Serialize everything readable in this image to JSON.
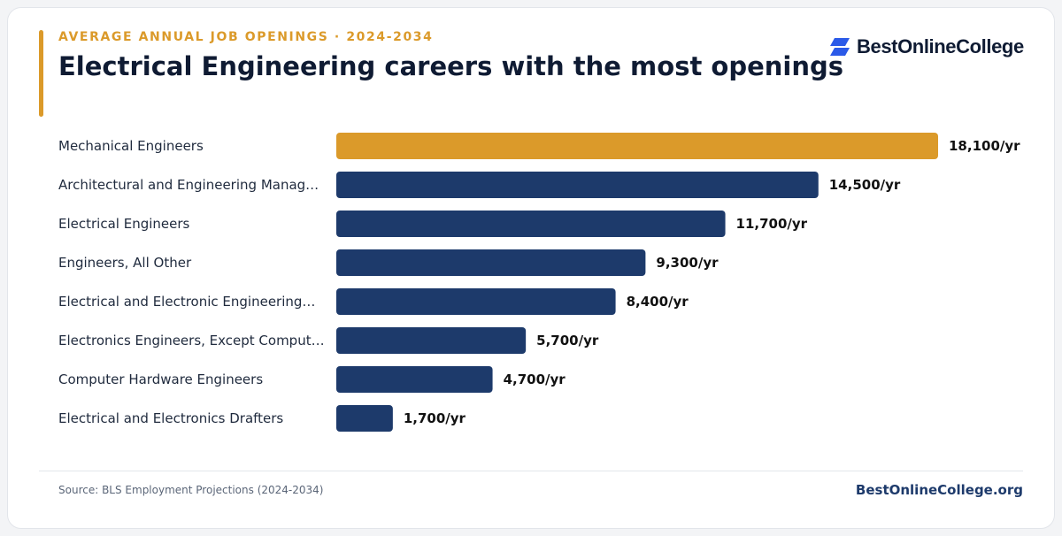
{
  "header": {
    "eyebrow": "AVERAGE ANNUAL JOB OPENINGS · 2024-2034",
    "title": "Electrical Engineering careers with the most openings"
  },
  "brand": {
    "logo_text": "BestOnlineCollege",
    "logo_icon": "stacked-parallelogram-icon",
    "logo_color": "#2b5ae8"
  },
  "footer": {
    "source": "Source: BLS Employment Projections (2024-2034)",
    "site": "BestOnlineCollege.org"
  },
  "colors": {
    "highlight": "#db9a2a",
    "bar": "#1d3a6b",
    "value_text": "#111111",
    "label_text": "#1f2a3d"
  },
  "chart_data": {
    "type": "bar",
    "orientation": "horizontal",
    "title": "Electrical Engineering careers with the most openings",
    "xlim": [
      0,
      18100
    ],
    "grid": false,
    "categories": [
      "Mechanical Engineers",
      "Architectural and Engineering Manag…",
      "Electrical Engineers",
      "Engineers, All Other",
      "Electrical and Electronic Engineering…",
      "Electronics Engineers, Except Comput…",
      "Computer Hardware Engineers",
      "Electrical and Electronics Drafters"
    ],
    "values": [
      18100,
      14500,
      11700,
      9300,
      8400,
      5700,
      4700,
      1700
    ],
    "value_labels": [
      "18,100/yr",
      "14,500/yr",
      "11,700/yr",
      "9,300/yr",
      "8,400/yr",
      "5,700/yr",
      "4,700/yr",
      "1,700/yr"
    ],
    "highlighted_index": 0
  }
}
